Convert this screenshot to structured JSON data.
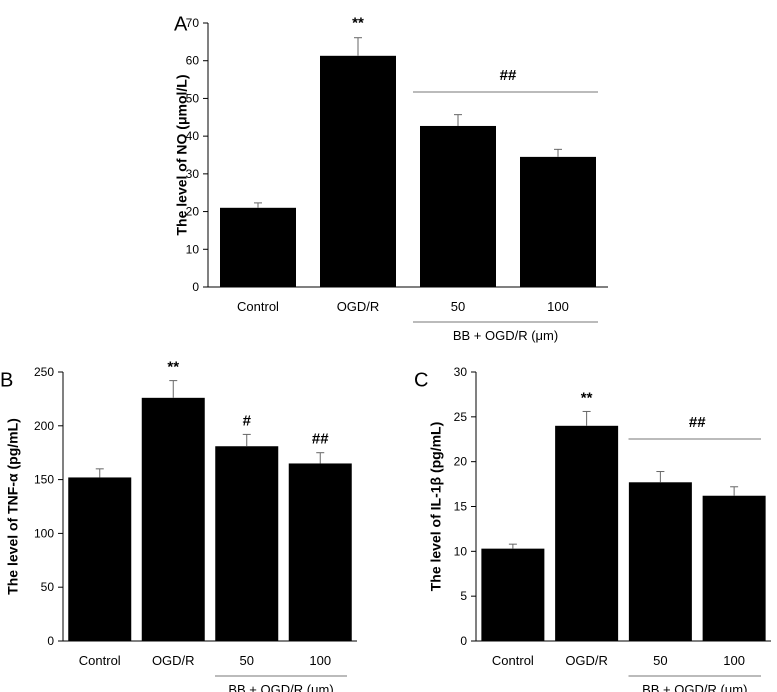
{
  "chart_data": [
    {
      "panel": "A",
      "type": "bar",
      "categories": [
        "Control",
        "OGD/R",
        "50",
        "100"
      ],
      "values": [
        21,
        61.3,
        42.7,
        34.5
      ],
      "errors": [
        1.3,
        4.8,
        3.0,
        2.0
      ],
      "ylabel": "The level of NO (μmol/L)",
      "ylim": [
        0,
        70
      ],
      "yticks": [
        0,
        10,
        20,
        30,
        40,
        50,
        60,
        70
      ],
      "annotations": [
        {
          "text": "**",
          "target": "bar",
          "index": 1
        },
        {
          "text": "##",
          "target": "bracket"
        }
      ],
      "bracket": {
        "from": 2,
        "to": 3
      },
      "group_label": "BB + OGD/R (μm)"
    },
    {
      "panel": "B",
      "type": "bar",
      "categories": [
        "Control",
        "OGD/R",
        "50",
        "100"
      ],
      "values": [
        152,
        226,
        181,
        165
      ],
      "errors": [
        8,
        16,
        11,
        10
      ],
      "ylabel": "The level of TNF-α (pg/mL)",
      "ylim": [
        0,
        250
      ],
      "yticks": [
        0,
        50,
        100,
        150,
        200,
        250
      ],
      "annotations": [
        {
          "text": "**",
          "target": "bar",
          "index": 1
        },
        {
          "text": "#",
          "target": "bar",
          "index": 2
        },
        {
          "text": "##",
          "target": "bar",
          "index": 3
        }
      ],
      "bracket": null,
      "group_label": "BB + OGD/R (μm)"
    },
    {
      "panel": "C",
      "type": "bar",
      "categories": [
        "Control",
        "OGD/R",
        "50",
        "100"
      ],
      "values": [
        10.3,
        24,
        17.7,
        16.2
      ],
      "errors": [
        0.5,
        1.6,
        1.2,
        1.0
      ],
      "ylabel": "The level of IL-1β (pg/mL)",
      "ylim": [
        0,
        30
      ],
      "yticks": [
        0,
        5,
        10,
        15,
        20,
        25,
        30
      ],
      "annotations": [
        {
          "text": "**",
          "target": "bar",
          "index": 1
        },
        {
          "text": "##",
          "target": "bracket"
        }
      ],
      "bracket": {
        "from": 2,
        "to": 3
      },
      "group_label": "BB + OGD/R (μm)"
    }
  ],
  "colors": {
    "bar": "#000000",
    "error_bar": "#666666",
    "bracket": "#777777",
    "axis": "#000000"
  }
}
